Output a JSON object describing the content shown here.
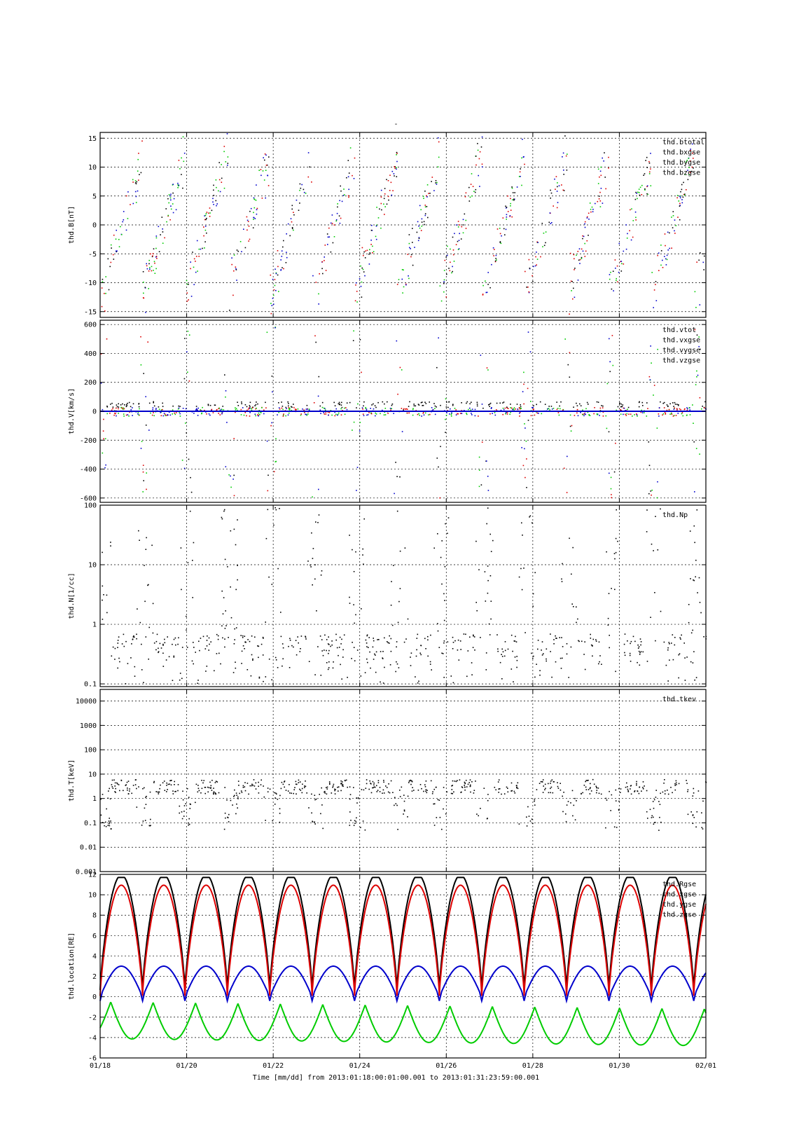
{
  "figure": {
    "title": "-",
    "xlabel": "Time [mm/dd]  from 2013:01:18:00:01:00.001  to  2013:01:31:23:59:00.001",
    "x_tick_labels": [
      "01/18",
      "01/20",
      "01/22",
      "01/24",
      "01/26",
      "01/28",
      "01/30",
      "02/01"
    ]
  },
  "colors": {
    "black": "#000000",
    "red": "#dd0000",
    "green": "#00cc00",
    "blue": "#0000cc"
  },
  "chart_data": [
    {
      "type": "scatter",
      "ylabel": "thd.B[nT]",
      "yscale": "linear",
      "ylim": [
        -16,
        16
      ],
      "y_ticks": [
        -15,
        -10,
        -5,
        0,
        5,
        10,
        15
      ],
      "y_tick_labels": [
        "-15",
        "-10",
        "-5",
        "0",
        "5",
        "10",
        "15"
      ],
      "grid": true,
      "legend_placement": "top-right",
      "series": [
        {
          "name": "thd.btotal",
          "color": "#000000"
        },
        {
          "name": "thd.bxgse",
          "color": "#dd0000"
        },
        {
          "name": "thd.bygse",
          "color": "#00cc00"
        },
        {
          "name": "thd.bzgse",
          "color": "#0000cc"
        }
      ]
    },
    {
      "type": "scatter",
      "ylabel": "thd.V[km/s]",
      "yscale": "linear",
      "ylim": [
        -630,
        630
      ],
      "y_ticks": [
        -600,
        -400,
        -200,
        0,
        200,
        400,
        600
      ],
      "y_tick_labels": [
        "-600",
        "-400",
        "-200",
        "0",
        "200",
        "400",
        "600"
      ],
      "grid": true,
      "legend_placement": "top-right",
      "series": [
        {
          "name": "thd.vtot",
          "color": "#000000"
        },
        {
          "name": "thd.vxgse",
          "color": "#dd0000"
        },
        {
          "name": "thd.vygse",
          "color": "#00cc00"
        },
        {
          "name": "thd.vzgse",
          "color": "#0000cc"
        }
      ]
    },
    {
      "type": "scatter",
      "ylabel": "thd.N[1/cc]",
      "yscale": "log",
      "ylim": [
        0.09,
        100
      ],
      "y_ticks": [
        0.1,
        1,
        10,
        100
      ],
      "y_tick_labels": [
        "0.1",
        "1",
        "10",
        "100"
      ],
      "grid": true,
      "legend_placement": "top-right",
      "series": [
        {
          "name": "thd.Np",
          "color": "#000000"
        }
      ]
    },
    {
      "type": "scatter",
      "ylabel": "thd.T[keV]",
      "yscale": "log",
      "ylim": [
        0.001,
        30000
      ],
      "y_ticks": [
        0.001,
        0.01,
        0.1,
        1,
        10,
        100,
        1000,
        10000
      ],
      "y_tick_labels": [
        "0.001",
        "0.01",
        "0.1",
        "1",
        "10",
        "100",
        "1000",
        "10000"
      ],
      "grid": true,
      "legend_placement": "top-right",
      "series": [
        {
          "name": "thd.tkev",
          "color": "#000000"
        }
      ]
    },
    {
      "type": "line",
      "ylabel": "thd.location[RE]",
      "yscale": "linear",
      "ylim": [
        -6,
        12
      ],
      "y_ticks": [
        -6,
        -4,
        -2,
        0,
        2,
        4,
        6,
        8,
        10,
        12
      ],
      "y_tick_labels": [
        "-6",
        "-4",
        "-2",
        "0",
        "2",
        "4",
        "6",
        "8",
        "10",
        "12"
      ],
      "grid": true,
      "legend_placement": "top-right",
      "series": [
        {
          "name": "thd.Rgse",
          "color": "#000000"
        },
        {
          "name": "thd.xgse",
          "color": "#dd0000"
        },
        {
          "name": "thd.ygse",
          "color": "#00cc00"
        },
        {
          "name": "thd.zgse",
          "color": "#0000cc"
        }
      ]
    }
  ]
}
